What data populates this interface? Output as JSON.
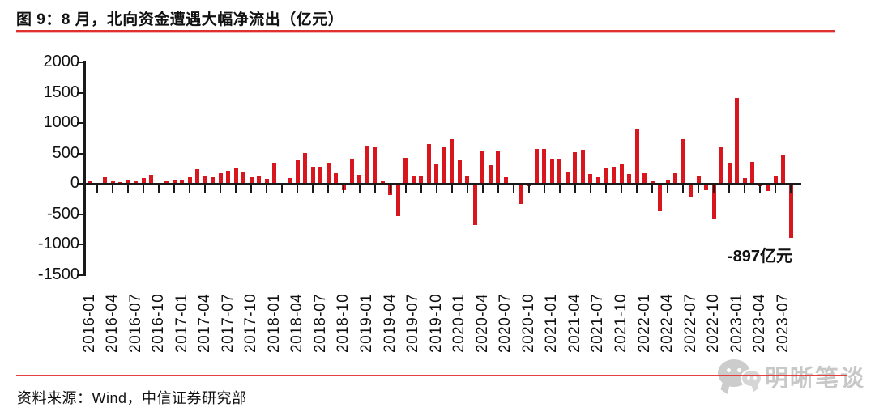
{
  "figure": {
    "title": "图 9：8 月，北向资金遭遇大幅净流出（亿元）",
    "source": "资料来源：Wind，中信证券研究部",
    "annotation": "-897亿元",
    "watermark_label": "明晰笔谈",
    "watermark_icon": "wechat-icon"
  },
  "colors": {
    "bar": "#d9161d",
    "rule": "#e02f2f",
    "axis": "#1a1a1a",
    "watermark": "#c8c8c8"
  },
  "chart_data": {
    "type": "bar",
    "title": "图 9：8 月，北向资金遭遇大幅净流出（亿元）",
    "unit": "亿元",
    "xlabel": "",
    "ylabel": "",
    "ylim": [
      -1500,
      2000
    ],
    "yticks": [
      2000,
      1500,
      1000,
      500,
      0,
      -500,
      -1000,
      -1500
    ],
    "grid": false,
    "legend": "none",
    "bar_color": "#d9161d",
    "x": [
      "2016-01",
      "2016-02",
      "2016-03",
      "2016-04",
      "2016-05",
      "2016-06",
      "2016-07",
      "2016-08",
      "2016-09",
      "2016-10",
      "2016-11",
      "2016-12",
      "2017-01",
      "2017-02",
      "2017-03",
      "2017-04",
      "2017-05",
      "2017-06",
      "2017-07",
      "2017-08",
      "2017-09",
      "2017-10",
      "2017-11",
      "2017-12",
      "2018-01",
      "2018-02",
      "2018-03",
      "2018-04",
      "2018-05",
      "2018-06",
      "2018-07",
      "2018-08",
      "2018-09",
      "2018-10",
      "2018-11",
      "2018-12",
      "2019-01",
      "2019-02",
      "2019-03",
      "2019-04",
      "2019-05",
      "2019-06",
      "2019-07",
      "2019-08",
      "2019-09",
      "2019-10",
      "2019-11",
      "2019-12",
      "2020-01",
      "2020-02",
      "2020-03",
      "2020-04",
      "2020-05",
      "2020-06",
      "2020-07",
      "2020-08",
      "2020-09",
      "2020-10",
      "2020-11",
      "2020-12",
      "2021-01",
      "2021-02",
      "2021-03",
      "2021-04",
      "2021-05",
      "2021-06",
      "2021-07",
      "2021-08",
      "2021-09",
      "2021-10",
      "2021-11",
      "2021-12",
      "2022-01",
      "2022-02",
      "2022-03",
      "2022-04",
      "2022-05",
      "2022-06",
      "2022-07",
      "2022-08",
      "2022-09",
      "2022-10",
      "2022-11",
      "2022-12",
      "2023-01",
      "2023-02",
      "2023-03",
      "2023-04",
      "2023-05",
      "2023-06",
      "2023-07",
      "2023-08"
    ],
    "values": [
      44,
      13,
      108,
      35,
      22,
      48,
      35,
      95,
      152,
      10,
      35,
      52,
      65,
      108,
      238,
      130,
      108,
      173,
      217,
      256,
      195,
      108,
      117,
      78,
      351,
      -26,
      97,
      386,
      508,
      285,
      285,
      350,
      177,
      -103,
      405,
      143,
      607,
      604,
      44,
      -180,
      -537,
      426,
      120,
      121,
      647,
      320,
      604,
      730,
      384,
      116,
      -679,
      533,
      301,
      527,
      104,
      -21,
      -328,
      -40,
      579,
      572,
      400,
      412,
      187,
      526,
      557,
      155,
      108,
      247,
      282,
      325,
      165,
      890,
      168,
      40,
      -451,
      63,
      169,
      730,
      -211,
      127,
      -112,
      -573,
      601,
      350,
      1413,
      93,
      354,
      -46,
      -121,
      140,
      470,
      -897
    ],
    "xtick_labels": [
      "2016-01",
      "2016-04",
      "2016-07",
      "2016-10",
      "2017-01",
      "2017-04",
      "2017-07",
      "2017-10",
      "2018-01",
      "2018-04",
      "2018-07",
      "2018-10",
      "2019-01",
      "2019-04",
      "2019-07",
      "2019-10",
      "2020-01",
      "2020-04",
      "2020-07",
      "2020-10",
      "2021-01",
      "2021-04",
      "2021-07",
      "2021-10",
      "2022-01",
      "2022-04",
      "2022-07",
      "2022-10",
      "2023-01",
      "2023-04",
      "2023-07"
    ],
    "annotation": {
      "text": "-897亿元",
      "month": "2023-08",
      "value": -897
    }
  }
}
